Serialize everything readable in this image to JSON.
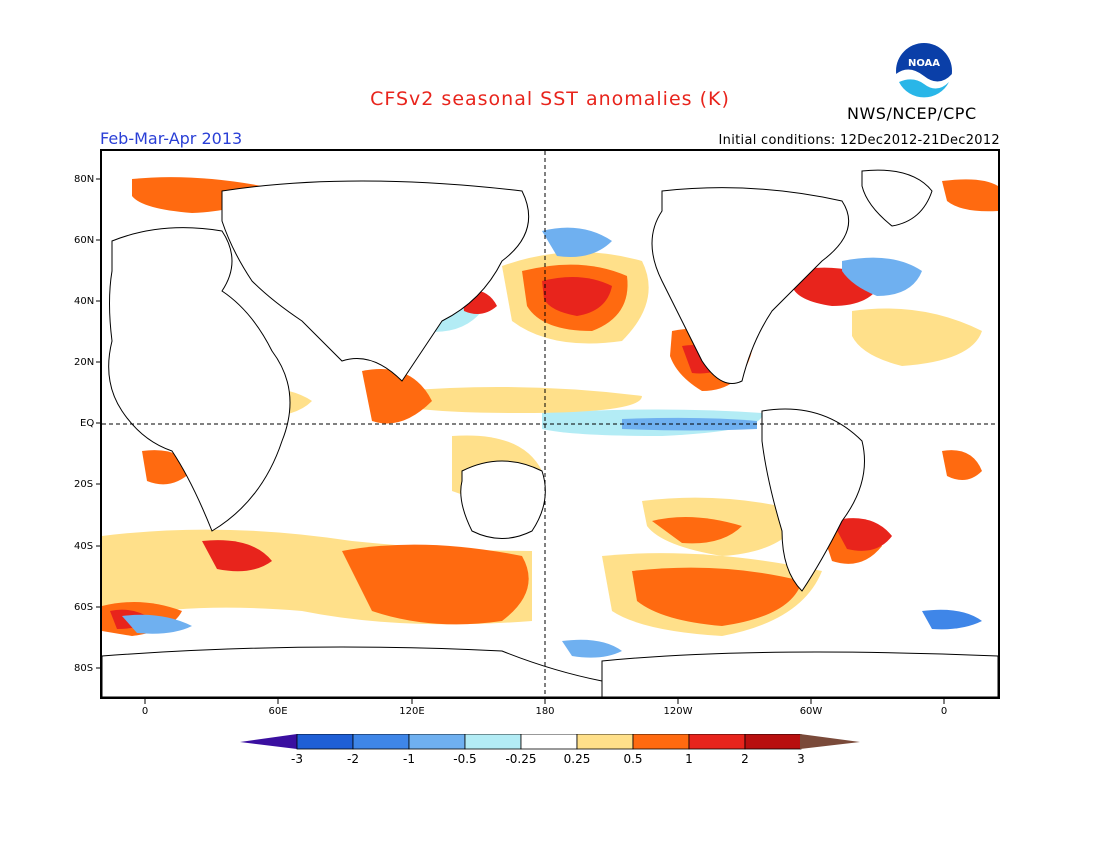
{
  "header": {
    "title": "CFSv2 seasonal SST anomalies (K)",
    "agency": "NWS/NCEP/CPC",
    "logo_text": "NOAA",
    "period": "Feb-Mar-Apr 2013",
    "initial_conditions": "Initial conditions: 12Dec2012-21Dec2012"
  },
  "axes": {
    "lat_labels": [
      "80N",
      "60N",
      "40N",
      "20N",
      "EQ",
      "20S",
      "40S",
      "60S",
      "80S"
    ],
    "lon_labels": [
      "0",
      "60E",
      "120E",
      "180",
      "120W",
      "60W",
      "0"
    ]
  },
  "colorbar": {
    "labels": [
      "-3",
      "-2",
      "-1",
      "-0.5",
      "-0.25",
      "0.25",
      "0.5",
      "1",
      "2",
      "3"
    ],
    "colors": [
      "#3a0fa0",
      "#1f5fd6",
      "#3f86e8",
      "#6fb0f0",
      "#b3ecf5",
      "#ffffff",
      "#ffe08a",
      "#ff6a10",
      "#e8241c",
      "#b80f0f",
      "#7a4a3a"
    ]
  },
  "palette": {
    "title_color": "#e8241c",
    "period_color": "#2a3fd6"
  }
}
